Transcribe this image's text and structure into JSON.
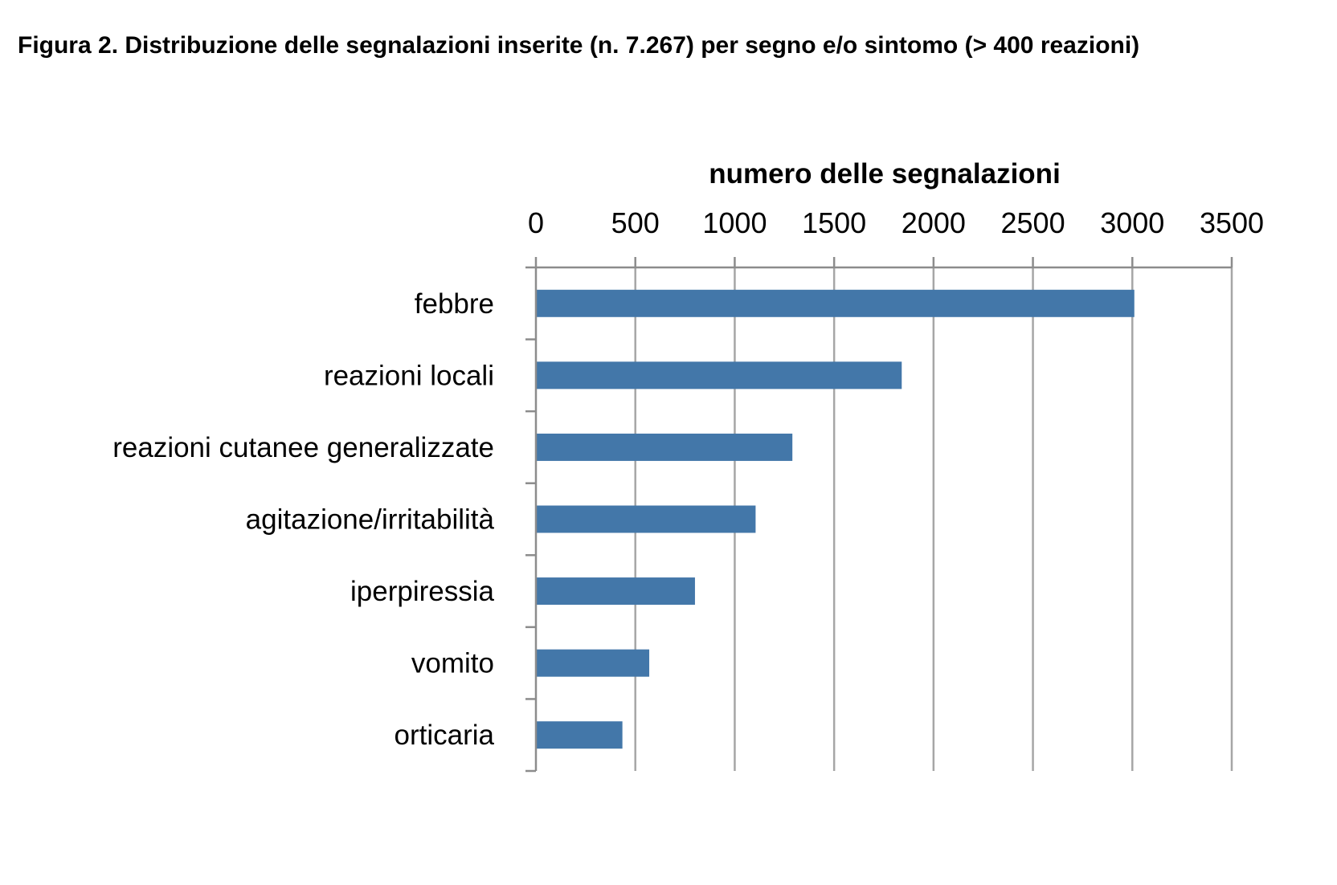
{
  "figure": {
    "title": "Figura 2. Distribuzione delle segnalazioni inserite (n. 7.267) per segno e/o sintomo  (> 400 reazioni)"
  },
  "chart_data": {
    "type": "bar",
    "orientation": "horizontal",
    "xlabel": "numero delle segnalazioni",
    "ylabel": "",
    "xlim": [
      0,
      3500
    ],
    "ticks": [
      "0",
      "500",
      "1000",
      "1500",
      "2000",
      "2500",
      "3000",
      "3500"
    ],
    "categories": [
      "febbre",
      "reazioni locali",
      "reazioni cutanee generalizzate",
      "agitazione/irritabilità",
      "iperpiressia",
      "vomito",
      "orticaria"
    ],
    "values": [
      3010,
      1840,
      1290,
      1105,
      800,
      570,
      435
    ],
    "grid": true,
    "legend": "none",
    "bar_color": "#4377a9",
    "grid_color": "#a6a6a6"
  }
}
